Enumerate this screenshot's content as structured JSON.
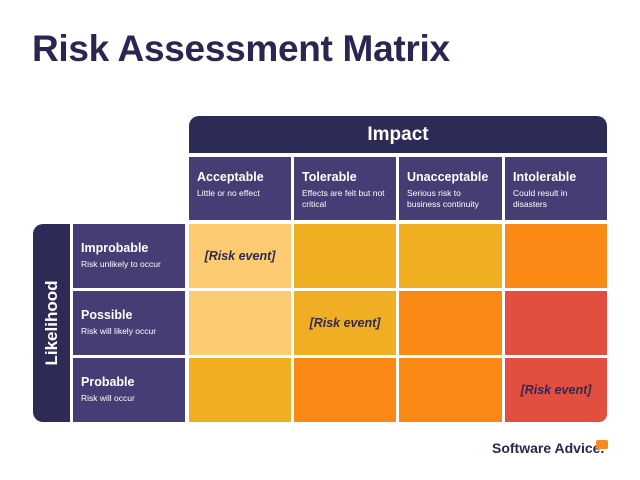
{
  "header": {
    "title": "Risk Assessment Matrix"
  },
  "matrix": {
    "impact_label": "Impact",
    "likelihood_label": "Likelihood",
    "columns": [
      {
        "title": "Acceptable",
        "description": "Little or no effect"
      },
      {
        "title": "Tolerable",
        "description": "Effects are felt but not critical"
      },
      {
        "title": "Unacceptable",
        "description": "Serious risk to business continuity"
      },
      {
        "title": "Intolerable",
        "description": "Could result in disasters"
      }
    ],
    "rows": [
      {
        "title": "Improbable",
        "description": "Risk unlikely to occur"
      },
      {
        "title": "Possible",
        "description": "Risk will likely occur"
      },
      {
        "title": "Probable",
        "description": "Risk will occur"
      }
    ],
    "risk_events": [
      "[Risk event]",
      "[Risk event]",
      "[Risk event]"
    ]
  },
  "footer": {
    "brand": "Software Advice."
  }
}
